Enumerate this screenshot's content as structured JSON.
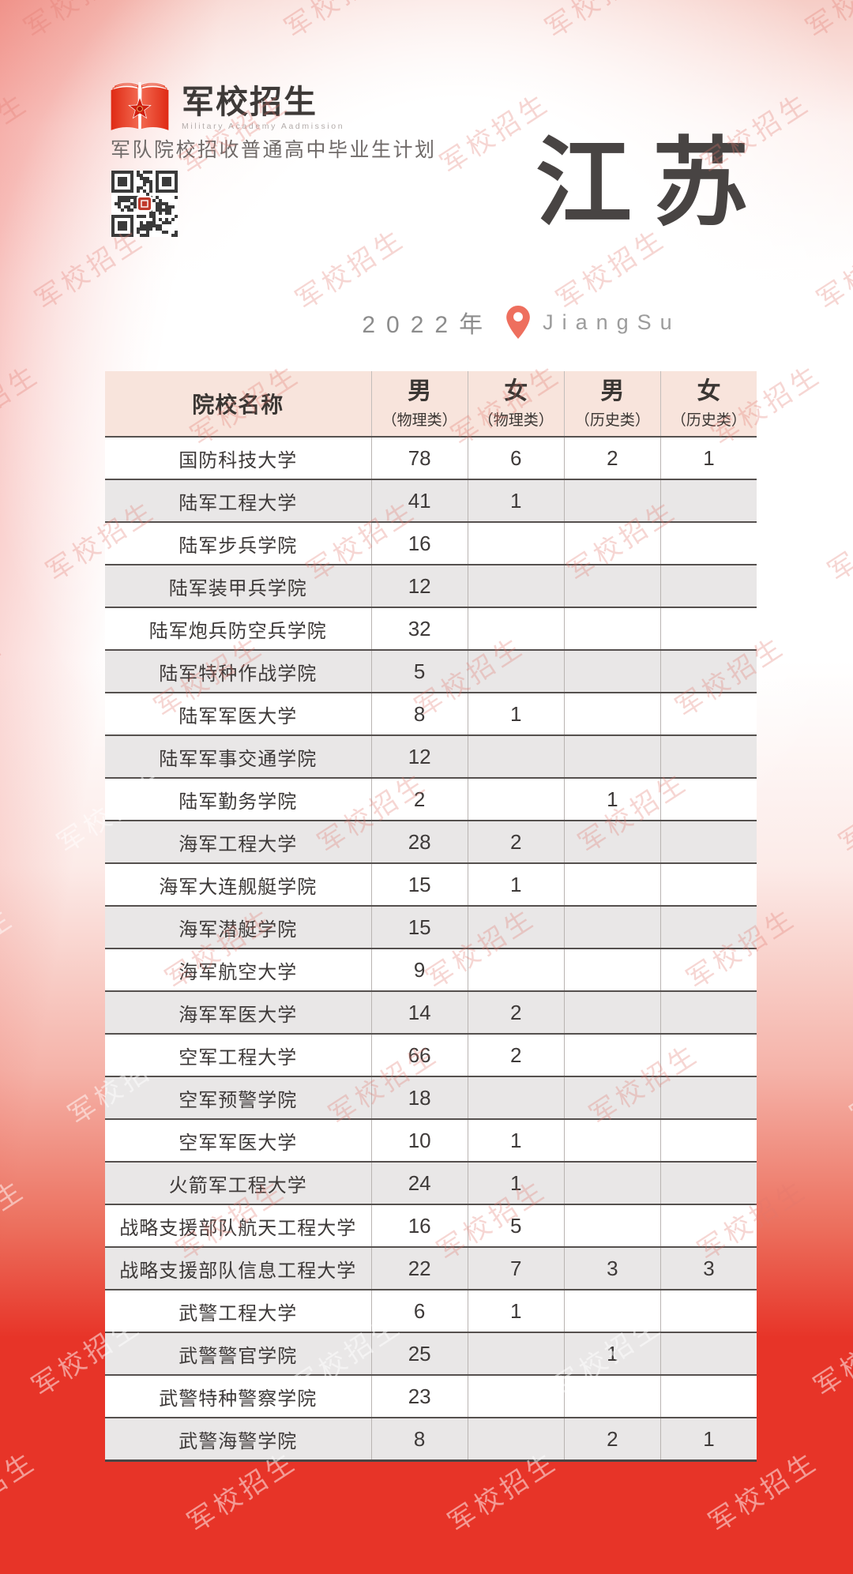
{
  "page": {
    "watermark_text": "军校招生",
    "colors": {
      "accent_red": "#e73428",
      "header_pink": "#f8e4dc",
      "row_alt_gray": "#e9e7e7",
      "pin_coral": "#ee6f5e",
      "title_gray": "#484443"
    }
  },
  "header": {
    "logo": {
      "icon": "open-book-star-logo",
      "title": "军校招生",
      "subtitle": "Military Academy Aadmission"
    },
    "tagline": "军队院校招收普通高中毕业生计划",
    "qr_icon": "qr-code"
  },
  "title_block": {
    "province": "江苏",
    "year": "2022年",
    "pin_icon": "location-pin",
    "province_en": "JiangSu"
  },
  "table": {
    "columns": [
      {
        "label": "院校名称",
        "sub": ""
      },
      {
        "label": "男",
        "sub": "（物理类）"
      },
      {
        "label": "女",
        "sub": "（物理类）"
      },
      {
        "label": "男",
        "sub": "（历史类）"
      },
      {
        "label": "女",
        "sub": "（历史类）"
      }
    ],
    "rows": [
      {
        "name": "国防科技大学",
        "values": [
          "78",
          "6",
          "2",
          "1"
        ]
      },
      {
        "name": "陆军工程大学",
        "values": [
          "41",
          "1",
          "",
          ""
        ]
      },
      {
        "name": "陆军步兵学院",
        "values": [
          "16",
          "",
          "",
          ""
        ]
      },
      {
        "name": "陆军装甲兵学院",
        "values": [
          "12",
          "",
          "",
          ""
        ]
      },
      {
        "name": "陆军炮兵防空兵学院",
        "values": [
          "32",
          "",
          "",
          ""
        ]
      },
      {
        "name": "陆军特种作战学院",
        "values": [
          "5",
          "",
          "",
          ""
        ]
      },
      {
        "name": "陆军军医大学",
        "values": [
          "8",
          "1",
          "",
          ""
        ]
      },
      {
        "name": "陆军军事交通学院",
        "values": [
          "12",
          "",
          "",
          ""
        ]
      },
      {
        "name": "陆军勤务学院",
        "values": [
          "2",
          "",
          "1",
          ""
        ]
      },
      {
        "name": "海军工程大学",
        "values": [
          "28",
          "2",
          "",
          ""
        ]
      },
      {
        "name": "海军大连舰艇学院",
        "values": [
          "15",
          "1",
          "",
          ""
        ]
      },
      {
        "name": "海军潜艇学院",
        "values": [
          "15",
          "",
          "",
          ""
        ]
      },
      {
        "name": "海军航空大学",
        "values": [
          "9",
          "",
          "",
          ""
        ]
      },
      {
        "name": "海军军医大学",
        "values": [
          "14",
          "2",
          "",
          ""
        ]
      },
      {
        "name": "空军工程大学",
        "values": [
          "66",
          "2",
          "",
          ""
        ]
      },
      {
        "name": "空军预警学院",
        "values": [
          "18",
          "",
          "",
          ""
        ]
      },
      {
        "name": "空军军医大学",
        "values": [
          "10",
          "1",
          "",
          ""
        ]
      },
      {
        "name": "火箭军工程大学",
        "values": [
          "24",
          "1",
          "",
          ""
        ]
      },
      {
        "name": "战略支援部队航天工程大学",
        "values": [
          "16",
          "5",
          "",
          ""
        ]
      },
      {
        "name": "战略支援部队信息工程大学",
        "values": [
          "22",
          "7",
          "3",
          "3"
        ]
      },
      {
        "name": "武警工程大学",
        "values": [
          "6",
          "1",
          "",
          ""
        ]
      },
      {
        "name": "武警警官学院",
        "values": [
          "25",
          "",
          "1",
          ""
        ]
      },
      {
        "name": "武警特种警察学院",
        "values": [
          "23",
          "",
          "",
          ""
        ]
      },
      {
        "name": "武警海警学院",
        "values": [
          "8",
          "",
          "2",
          "1"
        ]
      }
    ]
  }
}
